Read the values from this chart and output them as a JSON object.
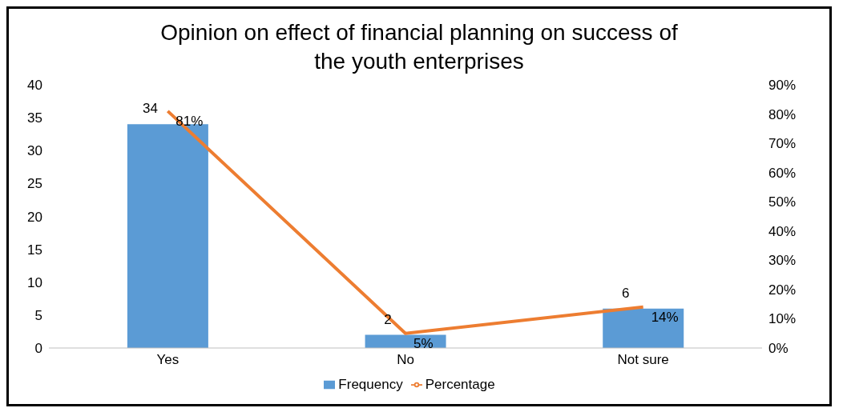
{
  "chart_data": {
    "type": "bar",
    "title": "Opinion on effect of financial planning on success of the youth enterprises",
    "categories": [
      "Yes",
      "No",
      "Not sure"
    ],
    "series": [
      {
        "name": "Frequency",
        "color": "#5b9bd5",
        "values": [
          34,
          2,
          6
        ]
      },
      {
        "name": "Percentage",
        "type": "line",
        "axis": "y2",
        "color": "#ed7d31",
        "values": [
          81,
          5,
          14
        ],
        "value_labels": [
          "81%",
          "5%",
          "14%"
        ]
      }
    ],
    "data_labels": true,
    "ylim": [
      0,
      40
    ],
    "yticks": [
      0,
      5,
      10,
      15,
      20,
      25,
      30,
      35,
      40
    ],
    "y2lim": [
      0,
      90
    ],
    "y2ticks": [
      {
        "value": 0,
        "label": "0%"
      },
      {
        "value": 10,
        "label": "10%"
      },
      {
        "value": 20,
        "label": "20%"
      },
      {
        "value": 30,
        "label": "30%"
      },
      {
        "value": 40,
        "label": "40%"
      },
      {
        "value": 50,
        "label": "50%"
      },
      {
        "value": 60,
        "label": "60%"
      },
      {
        "value": 70,
        "label": "70%"
      },
      {
        "value": 80,
        "label": "80%"
      },
      {
        "value": 90,
        "label": "90%"
      }
    ],
    "grid": false,
    "legend": "bottom",
    "marker": "none"
  }
}
